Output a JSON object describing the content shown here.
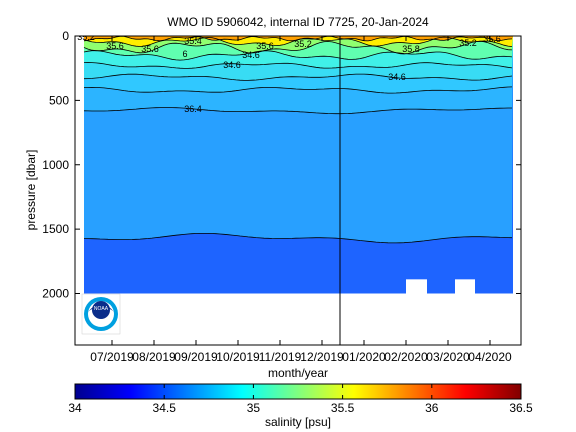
{
  "chart_data": {
    "type": "heatmap",
    "title": "WMO ID 5906042, internal ID 7725, 20-Jan-2024",
    "xlabel": "month/year",
    "ylabel": "pressure [dbar]",
    "x_tick_labels": [
      "07/2019",
      "08/2019",
      "09/2019",
      "10/2019",
      "11/2019",
      "12/2019",
      "01/2020",
      "02/2020",
      "03/2020",
      "04/2020"
    ],
    "y_ticks": [
      0,
      500,
      1000,
      1500,
      2000
    ],
    "ylim": [
      0,
      2400
    ],
    "y_reversed": true,
    "grid": false,
    "colorbar": {
      "label": "salinity [psu]",
      "ticks": [
        34,
        34.5,
        35,
        35.5,
        36,
        36.5
      ],
      "range": [
        34,
        36.5
      ],
      "colormap": "jet"
    },
    "contour_labels": [
      "35.2",
      "35.6",
      "35.6",
      "35.4",
      "35.6",
      "35.2",
      "6",
      "34.6",
      "34.6",
      "34.6",
      "36.4",
      "35.6",
      "35.2",
      "35.8"
    ],
    "profile_depth_dbar": 2000,
    "vertical_marker_label": "01/2020",
    "deep_water_salinity": 34.6,
    "surface_salinity_range": [
      35.2,
      36.4
    ]
  },
  "logo": {
    "text": "NOAA"
  },
  "colors": {
    "deep": "#1e64ff",
    "mid": "#28a0ff",
    "upper": "#30c8ff",
    "shallow": "#40f0e8",
    "surface_green": "#90ff70",
    "surface_yellow": "#ffee00",
    "surface_orange": "#ffa000"
  }
}
